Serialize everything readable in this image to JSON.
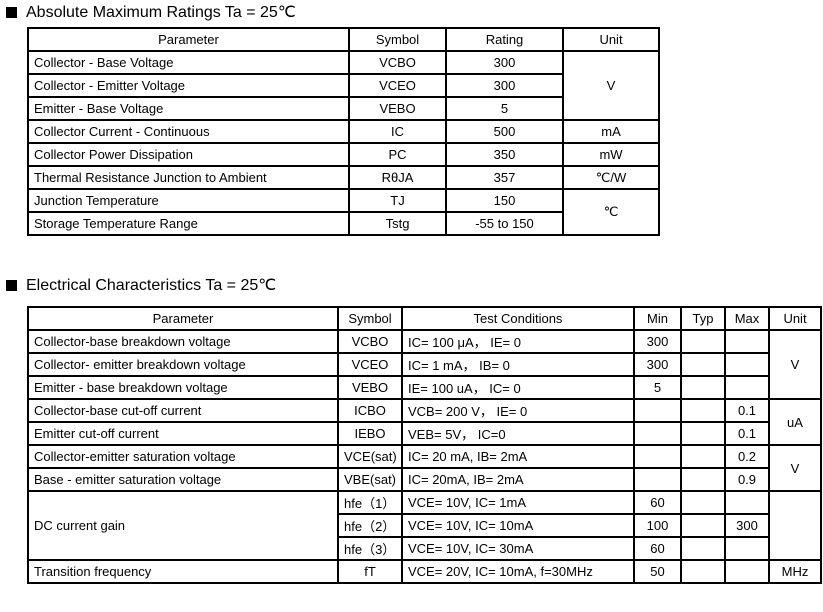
{
  "section1": {
    "title": "Absolute Maximum Ratings Ta = 25℃",
    "headers": [
      "Parameter",
      "Symbol",
      "Rating",
      "Unit"
    ],
    "rows": [
      {
        "param": "Collector - Base Voltage",
        "symbol": "VCBO",
        "rating": "300"
      },
      {
        "param": "Collector - Emitter Voltage",
        "symbol": "VCEO",
        "rating": "300"
      },
      {
        "param": "Emitter - Base Voltage",
        "symbol": "VEBO",
        "rating": "5"
      },
      {
        "param": "Collector Current  - Continuous",
        "symbol": "IC",
        "rating": "500"
      },
      {
        "param": "Collector Power Dissipation",
        "symbol": "PC",
        "rating": "350"
      },
      {
        "param": "Thermal Resistance Junction to Ambient",
        "symbol": "RθJA",
        "rating": "357"
      },
      {
        "param": "Junction Temperature",
        "symbol": "TJ",
        "rating": "150"
      },
      {
        "param": "Storage Temperature Range",
        "symbol": "Tstg",
        "rating": "-55 to 150"
      }
    ],
    "units": [
      "V",
      "mA",
      "mW",
      "℃/W",
      "℃"
    ]
  },
  "section2": {
    "title": "Electrical Characteristics Ta = 25℃",
    "headers": [
      "Parameter",
      "Symbol",
      "Test Conditions",
      "Min",
      "Typ",
      "Max",
      "Unit"
    ],
    "rows": [
      {
        "param": "Collector-base breakdown voltage",
        "symbol": "VCBO",
        "cond": "IC= 100 μA， IE= 0",
        "min": "300",
        "typ": "",
        "max": ""
      },
      {
        "param": "Collector- emitter breakdown voltage",
        "symbol": "VCEO",
        "cond": "IC= 1 mA，  IB= 0",
        "min": "300",
        "typ": "",
        "max": ""
      },
      {
        "param": "Emitter - base breakdown voltage",
        "symbol": "VEBO",
        "cond": "IE= 100 uA， IC= 0",
        "min": "5",
        "typ": "",
        "max": ""
      },
      {
        "param": "Collector-base cut-off current",
        "symbol": "ICBO",
        "cond": "VCB= 200 V， IE= 0",
        "min": "",
        "typ": "",
        "max": "0.1"
      },
      {
        "param": "Emitter cut-off current",
        "symbol": "IEBO",
        "cond": "VEB= 5V， IC=0",
        "min": "",
        "typ": "",
        "max": "0.1"
      },
      {
        "param": "Collector-emitter saturation voltage",
        "symbol": "VCE(sat)",
        "cond": "IC= 20 mA,  IB= 2mA",
        "min": "",
        "typ": "",
        "max": "0.2"
      },
      {
        "param": "Base - emitter saturation voltage",
        "symbol": "VBE(sat)",
        "cond": "IC=  20mA,  IB= 2mA",
        "min": "",
        "typ": "",
        "max": "0.9"
      },
      {
        "param": "DC current gain",
        "symbol": "hfe（1）",
        "cond": "VCE= 10V,  IC=  1mA",
        "min": "60",
        "typ": "",
        "max": ""
      },
      {
        "symbol": "hfe（2）",
        "cond": "VCE= 10V,  IC= 10mA",
        "min": "100",
        "typ": "",
        "max": "300"
      },
      {
        "symbol": "hfe（3）",
        "cond": "VCE= 10V,  IC= 30mA",
        "min": "60",
        "typ": "",
        "max": ""
      },
      {
        "param": "Transition  frequency",
        "symbol": "fT",
        "cond": "VCE= 20V,  IC= 10mA, f=30MHz",
        "min": "50",
        "typ": "",
        "max": ""
      }
    ],
    "units": [
      "V",
      "uA",
      "V",
      "",
      "MHz"
    ]
  }
}
